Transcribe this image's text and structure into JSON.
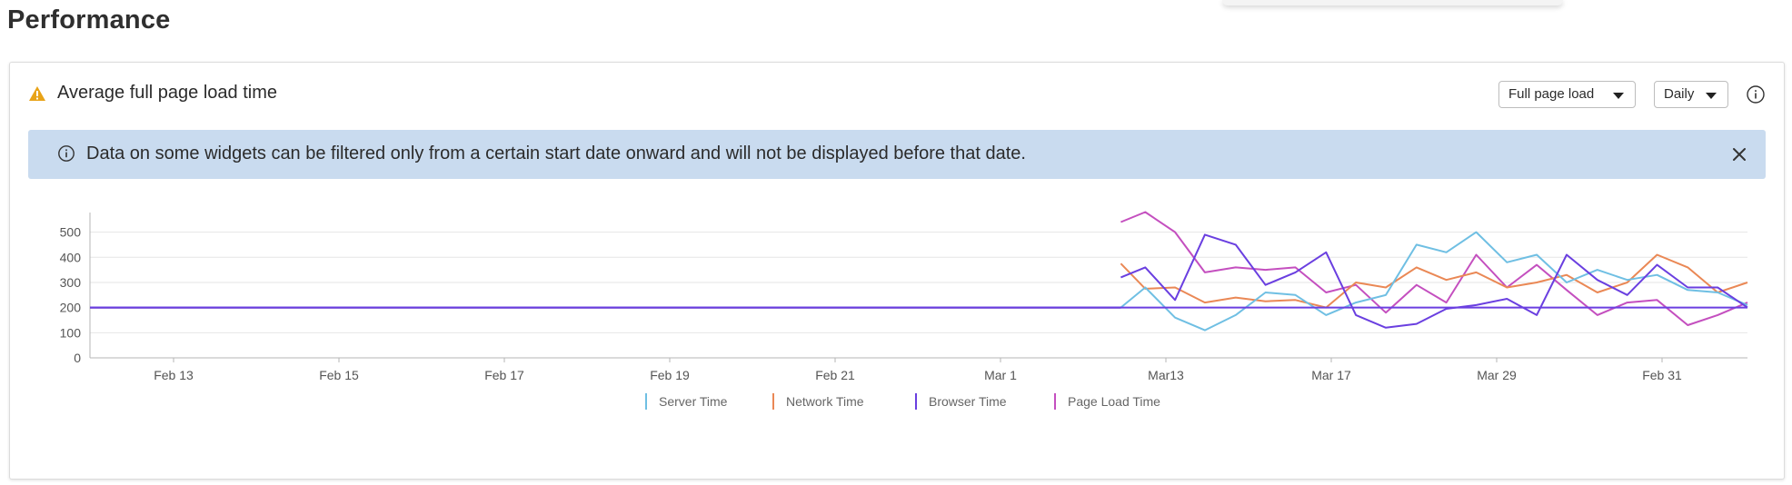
{
  "page": {
    "title": "Performance"
  },
  "widget": {
    "title": "Average full page load time",
    "load_type": "Full page load",
    "frequency": "Daily"
  },
  "banner": {
    "text": "Data on some widgets can be filtered only from a certain start date onward and will not be displayed before that date."
  },
  "icons": {
    "warning": "warning-triangle-icon",
    "info": "info-circle-icon",
    "close": "close-icon",
    "caret": "caret-down-icon"
  },
  "colors": {
    "warning": "#e8a317",
    "banner_bg": "#c9dbef",
    "server": "#6fbfe3",
    "network": "#ea8855",
    "browser": "#6a3fe0",
    "pageload": "#c44fbf"
  },
  "chart_data": {
    "type": "line",
    "categories": [
      "Feb 13",
      "Feb 15",
      "Feb 17",
      "Feb 19",
      "Feb 21",
      "Mar 1",
      "Mar13",
      "Mar 17",
      "Mar 29",
      "Feb 31"
    ],
    "ylim": [
      0,
      560
    ],
    "yticks": [
      0,
      100,
      200,
      300,
      400,
      500
    ],
    "grid": true,
    "legend_position": "bottom",
    "series": [
      {
        "name": "Server Time",
        "color": "#6fbfe3",
        "points": [
          [
            0,
            200
          ],
          [
            11.4,
            200
          ],
          [
            11.67,
            280
          ],
          [
            12.0,
            160
          ],
          [
            12.33,
            110
          ],
          [
            12.67,
            170
          ],
          [
            13.0,
            260
          ],
          [
            13.33,
            250
          ],
          [
            13.67,
            170
          ],
          [
            14.0,
            220
          ],
          [
            14.33,
            250
          ],
          [
            14.67,
            450
          ],
          [
            15.0,
            420
          ],
          [
            15.33,
            500
          ],
          [
            15.67,
            380
          ],
          [
            16.0,
            410
          ],
          [
            16.33,
            300
          ],
          [
            16.67,
            350
          ],
          [
            17.0,
            310
          ],
          [
            17.33,
            330
          ],
          [
            17.67,
            270
          ],
          [
            18.0,
            260
          ],
          [
            18.33,
            210
          ]
        ]
      },
      {
        "name": "Network Time",
        "color": "#ea8855",
        "points": [
          [
            0,
            200
          ],
          [
            11.4,
            200
          ],
          [
            11.4,
            375
          ],
          [
            11.67,
            275
          ],
          [
            12.0,
            280
          ],
          [
            12.33,
            220
          ],
          [
            12.67,
            240
          ],
          [
            13.0,
            225
          ],
          [
            13.33,
            230
          ],
          [
            13.67,
            200
          ],
          [
            14.0,
            300
          ],
          [
            14.33,
            280
          ],
          [
            14.67,
            360
          ],
          [
            15.0,
            310
          ],
          [
            15.33,
            340
          ],
          [
            15.67,
            280
          ],
          [
            16.0,
            300
          ],
          [
            16.33,
            330
          ],
          [
            16.67,
            260
          ],
          [
            17.0,
            300
          ],
          [
            17.33,
            410
          ],
          [
            17.67,
            360
          ],
          [
            18.0,
            260
          ],
          [
            18.33,
            300
          ]
        ]
      },
      {
        "name": "Browser Time",
        "color": "#6a3fe0",
        "points": [
          [
            0,
            200
          ],
          [
            18.33,
            200
          ],
          [
            11.4,
            200
          ],
          [
            11.4,
            320
          ],
          [
            11.67,
            360
          ],
          [
            12.0,
            230
          ],
          [
            12.33,
            490
          ],
          [
            12.67,
            450
          ],
          [
            13.0,
            290
          ],
          [
            13.33,
            340
          ],
          [
            13.67,
            420
          ],
          [
            14.0,
            170
          ],
          [
            14.33,
            120
          ],
          [
            14.67,
            135
          ],
          [
            15.0,
            195
          ],
          [
            15.33,
            210
          ],
          [
            15.67,
            235
          ],
          [
            16.0,
            170
          ],
          [
            16.33,
            410
          ],
          [
            16.67,
            310
          ],
          [
            17.0,
            250
          ],
          [
            17.33,
            370
          ],
          [
            17.67,
            280
          ],
          [
            18.0,
            280
          ],
          [
            18.33,
            200
          ]
        ]
      },
      {
        "name": "Page Load Time",
        "color": "#c44fbf",
        "points": [
          [
            0,
            200
          ],
          [
            11.4,
            200
          ],
          [
            11.4,
            540
          ],
          [
            11.67,
            580
          ],
          [
            12.0,
            500
          ],
          [
            12.33,
            340
          ],
          [
            12.67,
            360
          ],
          [
            13.0,
            350
          ],
          [
            13.33,
            360
          ],
          [
            13.67,
            260
          ],
          [
            14.0,
            290
          ],
          [
            14.33,
            180
          ],
          [
            14.67,
            290
          ],
          [
            15.0,
            220
          ],
          [
            15.33,
            410
          ],
          [
            15.67,
            280
          ],
          [
            16.0,
            370
          ],
          [
            16.33,
            270
          ],
          [
            16.67,
            170
          ],
          [
            17.0,
            220
          ],
          [
            17.33,
            230
          ],
          [
            17.67,
            130
          ],
          [
            18.0,
            170
          ],
          [
            18.33,
            220
          ]
        ]
      }
    ]
  }
}
